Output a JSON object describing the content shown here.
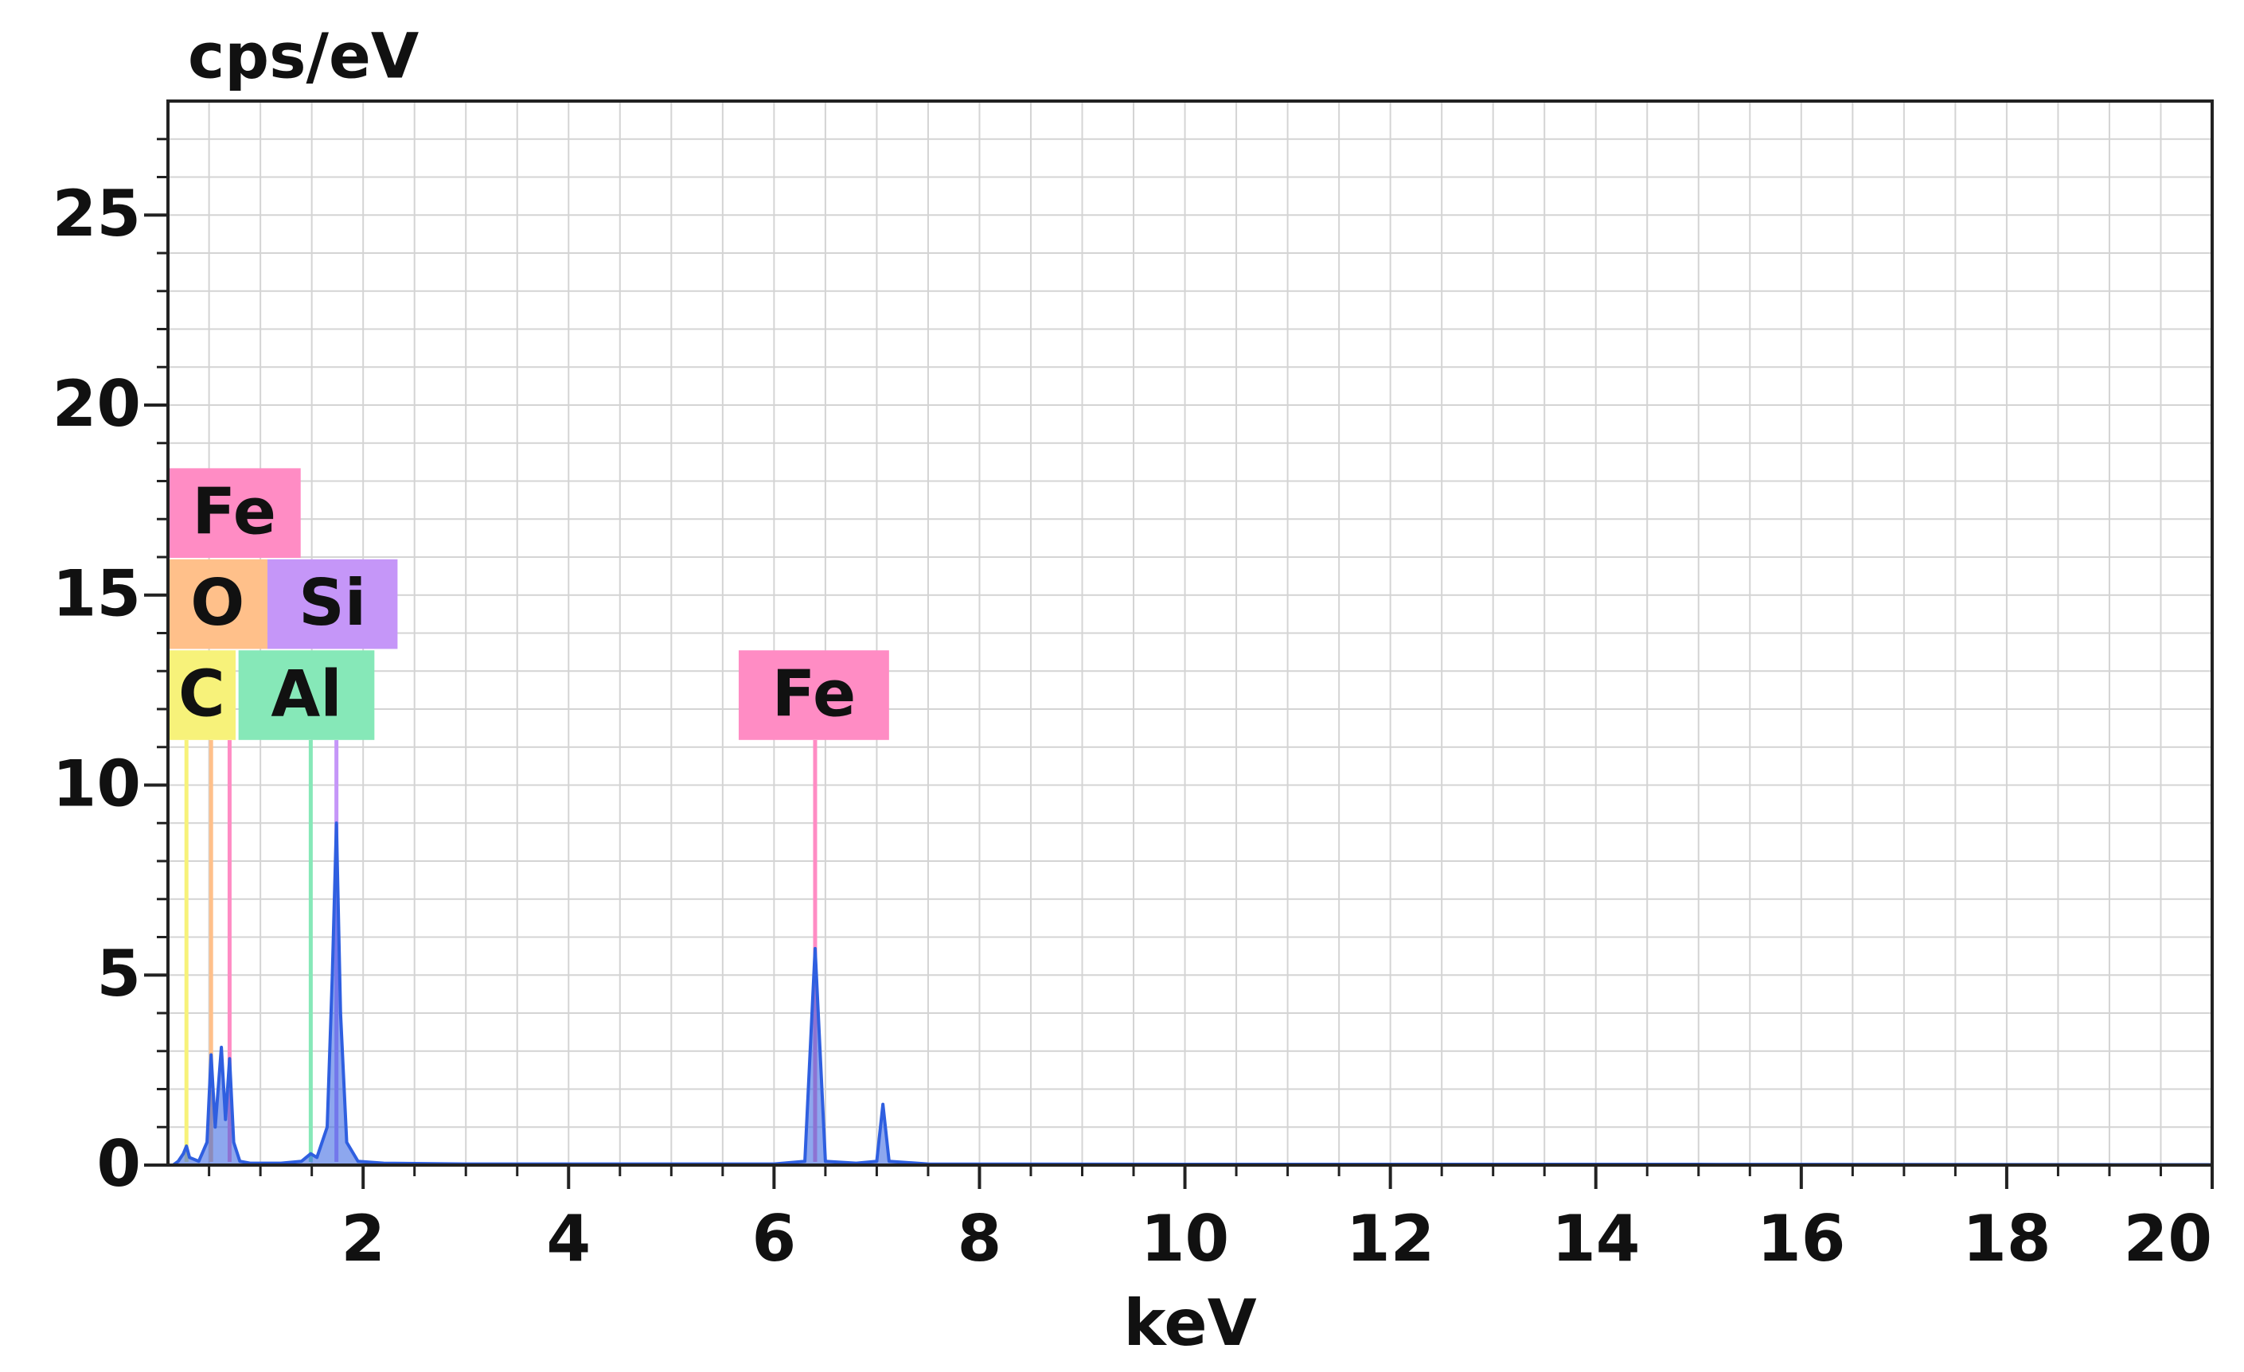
{
  "chart_data": {
    "type": "line",
    "y_label": "cps/eV",
    "x_label": "keV",
    "xlim": [
      0.1,
      20
    ],
    "ylim": [
      0,
      28
    ],
    "xticks": [
      2,
      4,
      6,
      8,
      10,
      12,
      14,
      16,
      18,
      20
    ],
    "yticks": [
      0,
      5,
      10,
      15,
      20,
      25
    ],
    "xgrid": [
      0.5,
      1,
      1.5,
      2,
      2.5,
      3,
      3.5,
      4,
      4.5,
      5,
      5.5,
      6,
      6.5,
      7,
      7.5,
      8,
      8.5,
      9,
      9.5,
      10,
      10.5,
      11,
      11.5,
      12,
      12.5,
      13,
      13.5,
      14,
      14.5,
      15,
      15.5,
      16,
      16.5,
      17,
      17.5,
      18,
      18.5,
      19,
      19.5
    ],
    "ygrid": [
      1,
      2,
      3,
      4,
      5,
      6,
      7,
      8,
      9,
      10,
      11,
      12,
      13,
      14,
      15,
      16,
      17,
      18,
      19,
      20,
      21,
      22,
      23,
      24,
      25,
      26,
      27
    ],
    "grid": true,
    "color": "#2f5fe0",
    "x": [
      0.15,
      0.2,
      0.25,
      0.28,
      0.31,
      0.4,
      0.48,
      0.52,
      0.56,
      0.62,
      0.66,
      0.7,
      0.74,
      0.8,
      0.9,
      1.2,
      1.4,
      1.49,
      1.55,
      1.65,
      1.7,
      1.74,
      1.78,
      1.84,
      1.95,
      2.2,
      3,
      4,
      5,
      6,
      6.3,
      6.4,
      6.5,
      6.8,
      7.0,
      7.06,
      7.12,
      7.5,
      10,
      15,
      20
    ],
    "values": [
      0,
      0.1,
      0.3,
      0.5,
      0.2,
      0.1,
      0.6,
      2.9,
      1.0,
      3.1,
      1.2,
      2.8,
      0.6,
      0.1,
      0.05,
      0.05,
      0.1,
      0.3,
      0.2,
      1.0,
      5.0,
      9.0,
      4.0,
      0.6,
      0.1,
      0.05,
      0.03,
      0.03,
      0.03,
      0.03,
      0.1,
      5.7,
      0.1,
      0.05,
      0.1,
      1.6,
      0.1,
      0.03,
      0.02,
      0.02,
      0.01
    ],
    "peaks": [
      {
        "label": "C",
        "x": 0.28,
        "color": "#f7f27a"
      },
      {
        "label": "O",
        "x": 0.52,
        "color": "#ffc08a"
      },
      {
        "label": "Fe",
        "x": 0.7,
        "color": "#ff8cc4"
      },
      {
        "label": "Al",
        "x": 1.49,
        "color": "#86e8b8"
      },
      {
        "label": "Si",
        "x": 1.74,
        "color": "#c596f8"
      },
      {
        "label": "Fe",
        "x": 6.4,
        "color": "#ff8cc4"
      }
    ]
  }
}
